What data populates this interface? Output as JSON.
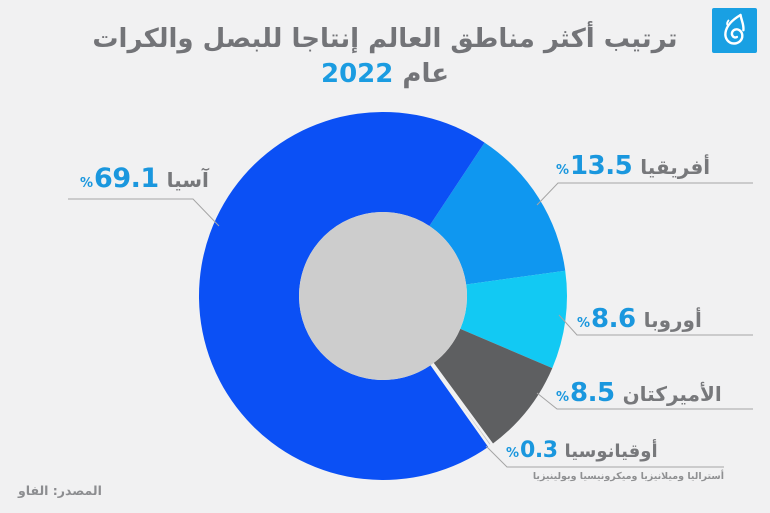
{
  "header": {
    "title_line1": "ترتيب أكثر مناطق العالم إنتاجا للبصل والكرات",
    "title_line2_prefix": "عام",
    "year": "2022"
  },
  "icons": {
    "logo": "al-jazeera-flame-icon"
  },
  "footer": {
    "source": "المصدر: الفاو"
  },
  "colors": {
    "background": "#f1f1f2",
    "title_text": "#737478",
    "year_accent": "#1b9ce1",
    "value_text": "#1a97de",
    "label_text": "#77787b",
    "leader_line": "#a5a5a5",
    "logo_bg": "#19a0e3",
    "donut_hole": "#cdcdcd"
  },
  "chart_data": {
    "type": "pie",
    "donut": true,
    "title": "ترتيب أكثر مناطق العالم إنتاجا للبصل والكرات عام 2022",
    "unit": "%",
    "start_angle_deg": 33.5,
    "direction": "clockwise",
    "total": 100,
    "legend_position": "callouts",
    "hole_color": "#cdcdcd",
    "background": "#f1f1f2",
    "slices": [
      {
        "label": "أفريقيا",
        "value": 13.5,
        "color": "#0f97f0"
      },
      {
        "label": "أوروبا",
        "value": 8.6,
        "color": "#12c9f3"
      },
      {
        "label": "الأميركتان",
        "value": 8.5,
        "color": "#5e5f61"
      },
      {
        "label": "أوقيانوسيا",
        "value": 0.3,
        "color": "#c3c3c4",
        "note": "أستراليا وميلانيزيا وميكرونيسيا وبولينيزيا"
      },
      {
        "label": "آسيا",
        "value": 69.1,
        "color": "#0b50f5"
      }
    ]
  }
}
